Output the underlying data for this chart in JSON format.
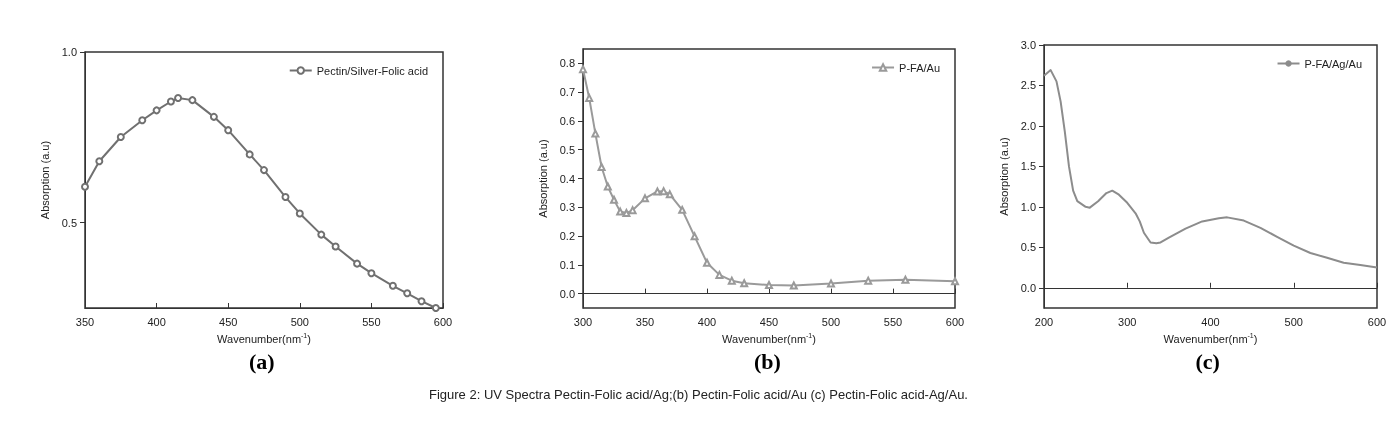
{
  "chart_data": [
    {
      "type": "line",
      "title": "(a)",
      "xlabel": "Wavenumber(nm$^{-1}$)",
      "ylabel": "Absorption (a.u)",
      "legend": "top right",
      "marker": "circle",
      "x": [
        350,
        360,
        375,
        390,
        400,
        410,
        415,
        425,
        440,
        450,
        465,
        475,
        490,
        500,
        515,
        525,
        540,
        550,
        565,
        575,
        585,
        595
      ],
      "series": [
        {
          "name": "Pectin/Silver-Folic acid",
          "color": "#707070",
          "values": [
            0.605,
            0.68,
            0.751,
            0.8,
            0.829,
            0.855,
            0.865,
            0.859,
            0.81,
            0.771,
            0.7,
            0.654,
            0.575,
            0.527,
            0.465,
            0.43,
            0.38,
            0.352,
            0.315,
            0.293,
            0.27,
            0.25
          ]
        }
      ],
      "xlim": [
        350,
        600
      ],
      "xticks": [
        350,
        400,
        450,
        500,
        550,
        600
      ],
      "ylim": [
        0.25,
        1.0
      ],
      "yticks": [
        {
          "value": 0.5,
          "label": "0.5"
        },
        {
          "value": 1,
          "label": "1.0"
        }
      ]
    },
    {
      "type": "line",
      "title": "(b)",
      "xlabel": "Wavenumber(nm$^{-1}$)",
      "ylabel": "Absorption (a.u)",
      "legend": "top right",
      "marker": "triangle",
      "x": [
        300,
        305,
        310,
        315,
        320,
        325,
        330,
        335,
        340,
        350,
        360,
        365,
        370,
        380,
        390,
        400,
        410,
        420,
        430,
        450,
        470,
        500,
        530,
        560,
        600
      ],
      "series": [
        {
          "name": "P-FA/Au",
          "color": "#9a9a9a",
          "values": [
            0.78,
            0.68,
            0.556,
            0.44,
            0.372,
            0.326,
            0.285,
            0.28,
            0.29,
            0.331,
            0.355,
            0.356,
            0.345,
            0.291,
            0.199,
            0.107,
            0.065,
            0.045,
            0.036,
            0.03,
            0.028,
            0.035,
            0.045,
            0.048,
            0.043
          ]
        }
      ],
      "annotations": [
        "Figure 2: UV Spectra Pectin-Folic acid/Ag;(b) Pectin-Folic acid/Au (c) Pectin-Folic acid-Ag/Au."
      ],
      "xlim": [
        300,
        600
      ],
      "xticks": [
        300,
        350,
        400,
        450,
        500,
        550,
        600
      ],
      "ylim": [
        -0.05,
        0.85
      ],
      "yticks": [
        {
          "value": 0,
          "label": "0.0"
        },
        0.1,
        0.2,
        0.3,
        0.4,
        0.5,
        0.6,
        0.7,
        0.8
      ]
    },
    {
      "type": "line",
      "title": "(c)",
      "xlabel": "Wavenumber(nm$^{-1}$)",
      "ylabel": "Absorption (a.u)",
      "legend": "top right",
      "marker": "none",
      "x": [
        200,
        208,
        215,
        220,
        225,
        230,
        235,
        240,
        250,
        255,
        265,
        275,
        282,
        290,
        300,
        310,
        315,
        320,
        328,
        335,
        340,
        350,
        370,
        390,
        410,
        420,
        440,
        460,
        480,
        500,
        520,
        540,
        560,
        580,
        600
      ],
      "series": [
        {
          "name": "P-FA/Ag/Au",
          "color": "#8c8c8c",
          "values": [
            2.62,
            2.69,
            2.55,
            2.3,
            1.93,
            1.5,
            1.2,
            1.07,
            1.0,
            0.99,
            1.07,
            1.17,
            1.2,
            1.15,
            1.05,
            0.92,
            0.82,
            0.68,
            0.56,
            0.55,
            0.56,
            0.62,
            0.73,
            0.82,
            0.86,
            0.87,
            0.83,
            0.74,
            0.63,
            0.52,
            0.43,
            0.37,
            0.31,
            0.28,
            0.25
          ]
        }
      ],
      "xlim": [
        200,
        600
      ],
      "xticks": [
        200,
        300,
        400,
        500,
        600
      ],
      "ylim": [
        -0.25,
        3.0
      ],
      "yticks": [
        {
          "value": 0,
          "label": "0.0"
        },
        0.5,
        {
          "value": 1,
          "label": "1.0"
        },
        1.5,
        {
          "value": 2,
          "label": "2.0"
        },
        2.5,
        {
          "value": 3,
          "label": "3.0"
        }
      ]
    }
  ]
}
